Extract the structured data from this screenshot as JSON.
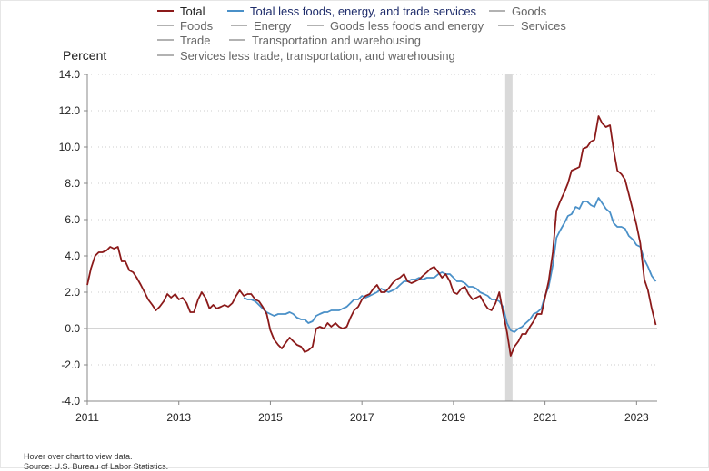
{
  "chart_data": {
    "type": "line",
    "ylabel": "Percent",
    "xlabel": "",
    "ylim": [
      -4.0,
      14.0
    ],
    "yticks": [
      -4.0,
      -2.0,
      0.0,
      2.0,
      4.0,
      6.0,
      8.0,
      10.0,
      12.0,
      14.0
    ],
    "ytick_labels": [
      "-4.0",
      "-2.0",
      "0.0",
      "2.0",
      "4.0",
      "6.0",
      "8.0",
      "10.0",
      "12.0",
      "14.0"
    ],
    "xlim": [
      2011.0,
      2023.45
    ],
    "xticks": [
      2011,
      2013,
      2015,
      2017,
      2019,
      2021,
      2023
    ],
    "xtick_labels": [
      "2011",
      "2013",
      "2015",
      "2017",
      "2019",
      "2021",
      "2023"
    ],
    "grid": true,
    "legend_position": "top",
    "recession_shading": [
      2020.13,
      2020.29
    ],
    "legend": [
      {
        "name": "Total",
        "color": "#8b1a1a",
        "active": true
      },
      {
        "name": "Total less foods, energy, and trade services",
        "color": "#4a90c8",
        "active": true
      },
      {
        "name": "Goods",
        "color": "#999999",
        "active": false
      },
      {
        "name": "Foods",
        "color": "#999999",
        "active": false
      },
      {
        "name": "Energy",
        "color": "#999999",
        "active": false
      },
      {
        "name": "Goods less foods and energy",
        "color": "#999999",
        "active": false
      },
      {
        "name": "Services",
        "color": "#999999",
        "active": false
      },
      {
        "name": "Trade",
        "color": "#999999",
        "active": false
      },
      {
        "name": "Transportation and warehousing",
        "color": "#999999",
        "active": false
      },
      {
        "name": "Services less trade, transportation, and warehousing",
        "color": "#999999",
        "active": false
      }
    ],
    "series": [
      {
        "name": "Total",
        "color": "#8b1a1a",
        "points": [
          [
            2011.0,
            2.4
          ],
          [
            2011.08,
            3.3
          ],
          [
            2011.17,
            4.0
          ],
          [
            2011.25,
            4.2
          ],
          [
            2011.33,
            4.2
          ],
          [
            2011.42,
            4.3
          ],
          [
            2011.5,
            4.5
          ],
          [
            2011.58,
            4.4
          ],
          [
            2011.67,
            4.5
          ],
          [
            2011.75,
            3.7
          ],
          [
            2011.83,
            3.7
          ],
          [
            2011.92,
            3.2
          ],
          [
            2012.0,
            3.1
          ],
          [
            2012.08,
            2.8
          ],
          [
            2012.17,
            2.4
          ],
          [
            2012.25,
            2.0
          ],
          [
            2012.33,
            1.6
          ],
          [
            2012.42,
            1.3
          ],
          [
            2012.5,
            1.0
          ],
          [
            2012.58,
            1.2
          ],
          [
            2012.67,
            1.5
          ],
          [
            2012.75,
            1.9
          ],
          [
            2012.83,
            1.7
          ],
          [
            2012.92,
            1.9
          ],
          [
            2013.0,
            1.6
          ],
          [
            2013.08,
            1.7
          ],
          [
            2013.17,
            1.4
          ],
          [
            2013.25,
            0.9
          ],
          [
            2013.33,
            0.9
          ],
          [
            2013.42,
            1.6
          ],
          [
            2013.5,
            2.0
          ],
          [
            2013.58,
            1.7
          ],
          [
            2013.67,
            1.1
          ],
          [
            2013.75,
            1.3
          ],
          [
            2013.83,
            1.1
          ],
          [
            2013.92,
            1.2
          ],
          [
            2014.0,
            1.3
          ],
          [
            2014.08,
            1.2
          ],
          [
            2014.17,
            1.4
          ],
          [
            2014.25,
            1.8
          ],
          [
            2014.33,
            2.1
          ],
          [
            2014.42,
            1.8
          ],
          [
            2014.5,
            1.9
          ],
          [
            2014.58,
            1.9
          ],
          [
            2014.67,
            1.6
          ],
          [
            2014.75,
            1.5
          ],
          [
            2014.83,
            1.2
          ],
          [
            2014.92,
            0.8
          ],
          [
            2015.0,
            -0.1
          ],
          [
            2015.08,
            -0.6
          ],
          [
            2015.17,
            -0.9
          ],
          [
            2015.25,
            -1.1
          ],
          [
            2015.33,
            -0.8
          ],
          [
            2015.42,
            -0.5
          ],
          [
            2015.5,
            -0.7
          ],
          [
            2015.58,
            -0.9
          ],
          [
            2015.67,
            -1.0
          ],
          [
            2015.75,
            -1.3
          ],
          [
            2015.83,
            -1.2
          ],
          [
            2015.92,
            -1.0
          ],
          [
            2016.0,
            0.0
          ],
          [
            2016.08,
            0.1
          ],
          [
            2016.17,
            0.0
          ],
          [
            2016.25,
            0.3
          ],
          [
            2016.33,
            0.1
          ],
          [
            2016.42,
            0.3
          ],
          [
            2016.5,
            0.1
          ],
          [
            2016.58,
            0.0
          ],
          [
            2016.67,
            0.1
          ],
          [
            2016.75,
            0.6
          ],
          [
            2016.83,
            1.0
          ],
          [
            2016.92,
            1.2
          ],
          [
            2017.0,
            1.6
          ],
          [
            2017.08,
            1.8
          ],
          [
            2017.17,
            1.9
          ],
          [
            2017.25,
            2.2
          ],
          [
            2017.33,
            2.4
          ],
          [
            2017.42,
            2.0
          ],
          [
            2017.5,
            2.0
          ],
          [
            2017.58,
            2.2
          ],
          [
            2017.67,
            2.5
          ],
          [
            2017.75,
            2.7
          ],
          [
            2017.83,
            2.8
          ],
          [
            2017.92,
            3.0
          ],
          [
            2018.0,
            2.6
          ],
          [
            2018.08,
            2.5
          ],
          [
            2018.17,
            2.6
          ],
          [
            2018.25,
            2.7
          ],
          [
            2018.33,
            2.9
          ],
          [
            2018.42,
            3.1
          ],
          [
            2018.5,
            3.3
          ],
          [
            2018.58,
            3.4
          ],
          [
            2018.67,
            3.1
          ],
          [
            2018.75,
            2.8
          ],
          [
            2018.83,
            3.0
          ],
          [
            2018.92,
            2.6
          ],
          [
            2019.0,
            2.0
          ],
          [
            2019.08,
            1.9
          ],
          [
            2019.17,
            2.2
          ],
          [
            2019.25,
            2.3
          ],
          [
            2019.33,
            1.9
          ],
          [
            2019.42,
            1.6
          ],
          [
            2019.5,
            1.7
          ],
          [
            2019.58,
            1.8
          ],
          [
            2019.67,
            1.4
          ],
          [
            2019.75,
            1.1
          ],
          [
            2019.83,
            1.0
          ],
          [
            2019.92,
            1.4
          ],
          [
            2020.0,
            2.0
          ],
          [
            2020.08,
            0.9
          ],
          [
            2020.17,
            -0.2
          ],
          [
            2020.25,
            -1.5
          ],
          [
            2020.33,
            -1.0
          ],
          [
            2020.42,
            -0.7
          ],
          [
            2020.5,
            -0.3
          ],
          [
            2020.58,
            -0.3
          ],
          [
            2020.67,
            0.1
          ],
          [
            2020.75,
            0.4
          ],
          [
            2020.83,
            0.8
          ],
          [
            2020.92,
            0.8
          ],
          [
            2021.0,
            1.7
          ],
          [
            2021.08,
            2.6
          ],
          [
            2021.17,
            4.2
          ],
          [
            2021.25,
            6.5
          ],
          [
            2021.33,
            7.0
          ],
          [
            2021.42,
            7.5
          ],
          [
            2021.5,
            8.0
          ],
          [
            2021.58,
            8.7
          ],
          [
            2021.67,
            8.8
          ],
          [
            2021.75,
            8.9
          ],
          [
            2021.83,
            9.9
          ],
          [
            2021.92,
            10.0
          ],
          [
            2022.0,
            10.3
          ],
          [
            2022.08,
            10.4
          ],
          [
            2022.17,
            11.7
          ],
          [
            2022.25,
            11.3
          ],
          [
            2022.33,
            11.1
          ],
          [
            2022.42,
            11.2
          ],
          [
            2022.5,
            9.8
          ],
          [
            2022.58,
            8.7
          ],
          [
            2022.67,
            8.5
          ],
          [
            2022.75,
            8.2
          ],
          [
            2022.83,
            7.4
          ],
          [
            2022.92,
            6.5
          ],
          [
            2023.0,
            5.7
          ],
          [
            2023.08,
            4.7
          ],
          [
            2023.17,
            2.7
          ],
          [
            2023.25,
            2.1
          ],
          [
            2023.33,
            1.1
          ],
          [
            2023.42,
            0.2
          ]
        ]
      },
      {
        "name": "Total less foods, energy, and trade services",
        "color": "#4a90c8",
        "points": [
          [
            2014.42,
            1.7
          ],
          [
            2014.5,
            1.6
          ],
          [
            2014.58,
            1.6
          ],
          [
            2014.67,
            1.5
          ],
          [
            2014.75,
            1.3
          ],
          [
            2014.83,
            1.1
          ],
          [
            2014.92,
            0.9
          ],
          [
            2015.0,
            0.8
          ],
          [
            2015.08,
            0.7
          ],
          [
            2015.17,
            0.8
          ],
          [
            2015.25,
            0.8
          ],
          [
            2015.33,
            0.8
          ],
          [
            2015.42,
            0.9
          ],
          [
            2015.5,
            0.8
          ],
          [
            2015.58,
            0.6
          ],
          [
            2015.67,
            0.5
          ],
          [
            2015.75,
            0.5
          ],
          [
            2015.83,
            0.3
          ],
          [
            2015.92,
            0.4
          ],
          [
            2016.0,
            0.7
          ],
          [
            2016.08,
            0.8
          ],
          [
            2016.17,
            0.9
          ],
          [
            2016.25,
            0.9
          ],
          [
            2016.33,
            1.0
          ],
          [
            2016.42,
            1.0
          ],
          [
            2016.5,
            1.0
          ],
          [
            2016.58,
            1.1
          ],
          [
            2016.67,
            1.2
          ],
          [
            2016.75,
            1.4
          ],
          [
            2016.83,
            1.6
          ],
          [
            2016.92,
            1.6
          ],
          [
            2017.0,
            1.8
          ],
          [
            2017.08,
            1.7
          ],
          [
            2017.17,
            1.8
          ],
          [
            2017.25,
            1.9
          ],
          [
            2017.33,
            2.0
          ],
          [
            2017.42,
            2.2
          ],
          [
            2017.5,
            2.1
          ],
          [
            2017.58,
            2.0
          ],
          [
            2017.67,
            2.1
          ],
          [
            2017.75,
            2.2
          ],
          [
            2017.83,
            2.4
          ],
          [
            2017.92,
            2.6
          ],
          [
            2018.0,
            2.6
          ],
          [
            2018.08,
            2.7
          ],
          [
            2018.17,
            2.7
          ],
          [
            2018.25,
            2.8
          ],
          [
            2018.33,
            2.7
          ],
          [
            2018.42,
            2.8
          ],
          [
            2018.5,
            2.8
          ],
          [
            2018.58,
            2.8
          ],
          [
            2018.67,
            3.0
          ],
          [
            2018.75,
            3.1
          ],
          [
            2018.83,
            3.0
          ],
          [
            2018.92,
            3.0
          ],
          [
            2019.0,
            2.8
          ],
          [
            2019.08,
            2.6
          ],
          [
            2019.17,
            2.6
          ],
          [
            2019.25,
            2.5
          ],
          [
            2019.33,
            2.3
          ],
          [
            2019.42,
            2.3
          ],
          [
            2019.5,
            2.2
          ],
          [
            2019.58,
            2.0
          ],
          [
            2019.67,
            1.9
          ],
          [
            2019.75,
            1.8
          ],
          [
            2019.83,
            1.6
          ],
          [
            2019.92,
            1.6
          ],
          [
            2020.0,
            1.5
          ],
          [
            2020.08,
            1.2
          ],
          [
            2020.17,
            0.3
          ],
          [
            2020.25,
            -0.1
          ],
          [
            2020.33,
            -0.2
          ],
          [
            2020.42,
            0.0
          ],
          [
            2020.5,
            0.1
          ],
          [
            2020.58,
            0.3
          ],
          [
            2020.67,
            0.5
          ],
          [
            2020.75,
            0.8
          ],
          [
            2020.83,
            0.9
          ],
          [
            2020.92,
            1.1
          ],
          [
            2021.0,
            1.8
          ],
          [
            2021.08,
            2.3
          ],
          [
            2021.17,
            3.5
          ],
          [
            2021.25,
            5.0
          ],
          [
            2021.33,
            5.4
          ],
          [
            2021.42,
            5.8
          ],
          [
            2021.5,
            6.2
          ],
          [
            2021.58,
            6.3
          ],
          [
            2021.67,
            6.7
          ],
          [
            2021.75,
            6.6
          ],
          [
            2021.83,
            7.0
          ],
          [
            2021.92,
            7.0
          ],
          [
            2022.0,
            6.8
          ],
          [
            2022.08,
            6.7
          ],
          [
            2022.17,
            7.2
          ],
          [
            2022.25,
            6.9
          ],
          [
            2022.33,
            6.6
          ],
          [
            2022.42,
            6.4
          ],
          [
            2022.5,
            5.8
          ],
          [
            2022.58,
            5.6
          ],
          [
            2022.67,
            5.6
          ],
          [
            2022.75,
            5.5
          ],
          [
            2022.83,
            5.1
          ],
          [
            2022.92,
            4.9
          ],
          [
            2023.0,
            4.6
          ],
          [
            2023.08,
            4.5
          ],
          [
            2023.17,
            3.8
          ],
          [
            2023.25,
            3.4
          ],
          [
            2023.33,
            2.9
          ],
          [
            2023.42,
            2.6
          ]
        ]
      }
    ]
  },
  "footer": {
    "hint": "Hover over chart to view data.",
    "source": "Source: U.S. Bureau of Labor Statistics."
  }
}
